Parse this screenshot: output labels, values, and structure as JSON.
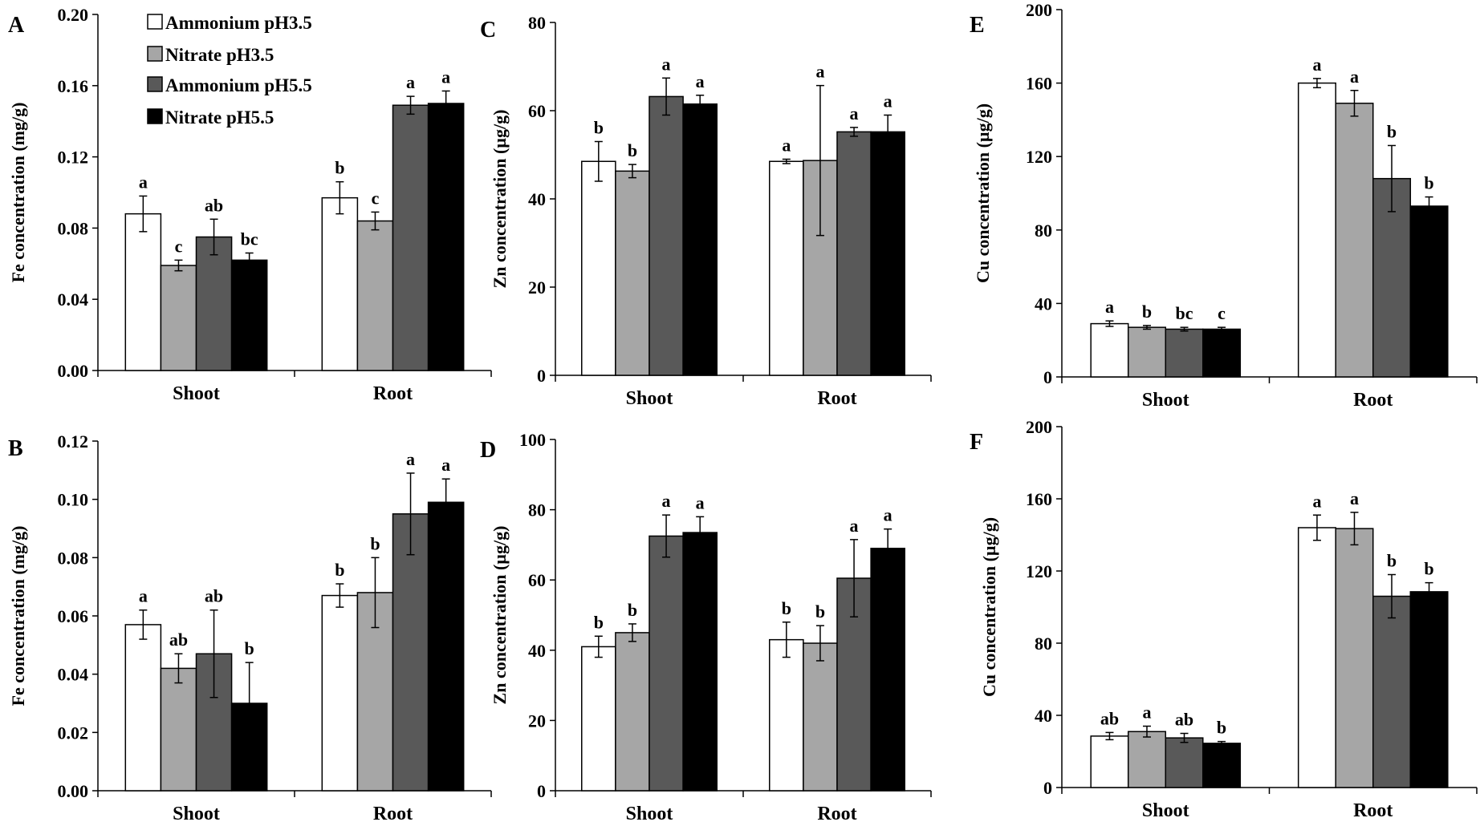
{
  "chart_data": [
    {
      "id": "A",
      "type": "bar",
      "panel_label": "A",
      "ylabel": "Fe concentration (mg/g)",
      "ylim": [
        0,
        0.2
      ],
      "yticks": [
        "0.00",
        "0.04",
        "0.08",
        "0.12",
        "0.16",
        "0.20"
      ],
      "categories": [
        "Shoot",
        "Root"
      ],
      "series": [
        {
          "name": "Ammonium pH3.5",
          "values": [
            0.088,
            0.097
          ],
          "errors": [
            0.01,
            0.009
          ],
          "letters": [
            "a",
            "b"
          ]
        },
        {
          "name": "Nitrate pH3.5",
          "values": [
            0.059,
            0.084
          ],
          "errors": [
            0.003,
            0.005
          ],
          "letters": [
            "c",
            "c"
          ]
        },
        {
          "name": "Ammonium pH5.5",
          "values": [
            0.075,
            0.149
          ],
          "errors": [
            0.01,
            0.005
          ],
          "letters": [
            "ab",
            "a"
          ]
        },
        {
          "name": "Nitrate pH5.5",
          "values": [
            0.062,
            0.15
          ],
          "errors": [
            0.004,
            0.007
          ],
          "letters": [
            "bc",
            "a"
          ]
        }
      ]
    },
    {
      "id": "C",
      "type": "bar",
      "panel_label": "C",
      "ylabel": "Zn concentration  (µg/g)",
      "ylim": [
        0,
        80
      ],
      "yticks": [
        "0",
        "20",
        "40",
        "60",
        "80"
      ],
      "categories": [
        "Shoot",
        "Root"
      ],
      "series": [
        {
          "name": "Ammonium pH3.5",
          "values": [
            48.5,
            48.5
          ],
          "errors": [
            4.5,
            0.5
          ],
          "letters": [
            "b",
            "a"
          ]
        },
        {
          "name": "Nitrate pH3.5",
          "values": [
            46.3,
            48.7
          ],
          "errors": [
            1.5,
            17
          ],
          "letters": [
            "b",
            "a"
          ]
        },
        {
          "name": "Ammonium pH5.5",
          "values": [
            63.2,
            55.2
          ],
          "errors": [
            4.2,
            1.0
          ],
          "letters": [
            "a",
            "a"
          ]
        },
        {
          "name": "Nitrate pH5.5",
          "values": [
            61.5,
            55.2
          ],
          "errors": [
            2.0,
            3.8
          ],
          "letters": [
            "a",
            "a"
          ]
        }
      ]
    },
    {
      "id": "E",
      "type": "bar",
      "panel_label": "E",
      "ylabel": "Cu concentration  (µg/g)",
      "ylim": [
        0,
        200
      ],
      "yticks": [
        "0",
        "40",
        "80",
        "120",
        "160",
        "200"
      ],
      "categories": [
        "Shoot",
        "Root"
      ],
      "series": [
        {
          "name": "Ammonium pH3.5",
          "values": [
            29,
            160
          ],
          "errors": [
            1.5,
            2.5
          ],
          "letters": [
            "a",
            "a"
          ]
        },
        {
          "name": "Nitrate pH3.5",
          "values": [
            27,
            149
          ],
          "errors": [
            1.0,
            7.0
          ],
          "letters": [
            "b",
            "a"
          ]
        },
        {
          "name": "Ammonium pH5.5",
          "values": [
            26,
            108
          ],
          "errors": [
            1.0,
            18
          ],
          "letters": [
            "bc",
            "b"
          ]
        },
        {
          "name": "Nitrate pH5.5",
          "values": [
            26,
            93
          ],
          "errors": [
            1.0,
            5.0
          ],
          "letters": [
            "c",
            "b"
          ]
        }
      ]
    },
    {
      "id": "B",
      "type": "bar",
      "panel_label": "B",
      "ylabel": "Fe concentration (mg/g)",
      "ylim": [
        0,
        0.12
      ],
      "yticks": [
        "0.00",
        "0.02",
        "0.04",
        "0.06",
        "0.08",
        "0.10",
        "0.12"
      ],
      "categories": [
        "Shoot",
        "Root"
      ],
      "series": [
        {
          "name": "Ammonium pH3.5",
          "values": [
            0.057,
            0.067
          ],
          "errors": [
            0.005,
            0.004
          ],
          "letters": [
            "a",
            "b"
          ]
        },
        {
          "name": "Nitrate pH3.5",
          "values": [
            0.042,
            0.068
          ],
          "errors": [
            0.005,
            0.012
          ],
          "letters": [
            "ab",
            "b"
          ]
        },
        {
          "name": "Ammonium pH5.5",
          "values": [
            0.047,
            0.095
          ],
          "errors": [
            0.015,
            0.014
          ],
          "letters": [
            "ab",
            "a"
          ]
        },
        {
          "name": "Nitrate pH5.5",
          "values": [
            0.03,
            0.099
          ],
          "errors": [
            0.014,
            0.008
          ],
          "letters": [
            "b",
            "a"
          ]
        }
      ]
    },
    {
      "id": "D",
      "type": "bar",
      "panel_label": "D",
      "ylabel": "Zn concentration  (µg/g)",
      "ylim": [
        0,
        100
      ],
      "yticks": [
        "0",
        "20",
        "40",
        "60",
        "80",
        "100"
      ],
      "categories": [
        "Shoot",
        "Root"
      ],
      "series": [
        {
          "name": "Ammonium pH3.5",
          "values": [
            41,
            43
          ],
          "errors": [
            3.0,
            5.0
          ],
          "letters": [
            "b",
            "b"
          ]
        },
        {
          "name": "Nitrate pH3.5",
          "values": [
            45,
            42
          ],
          "errors": [
            2.5,
            5.0
          ],
          "letters": [
            "b",
            "b"
          ]
        },
        {
          "name": "Ammonium pH5.5",
          "values": [
            72.5,
            60.5
          ],
          "errors": [
            6.0,
            11
          ],
          "letters": [
            "a",
            "a"
          ]
        },
        {
          "name": "Nitrate pH5.5",
          "values": [
            73.5,
            69
          ],
          "errors": [
            4.5,
            5.5
          ],
          "letters": [
            "a",
            "a"
          ]
        }
      ]
    },
    {
      "id": "F",
      "type": "bar",
      "panel_label": "F",
      "ylabel": "Cu concentration (µg/g)",
      "ylim": [
        0,
        200
      ],
      "yticks": [
        "0",
        "40",
        "80",
        "120",
        "160",
        "200"
      ],
      "categories": [
        "Shoot",
        "Root"
      ],
      "series": [
        {
          "name": "Ammonium pH3.5",
          "values": [
            28.5,
            144
          ],
          "errors": [
            2.0,
            7.0
          ],
          "letters": [
            "ab",
            "a"
          ]
        },
        {
          "name": "Nitrate pH3.5",
          "values": [
            31,
            143.5
          ],
          "errors": [
            3.0,
            9.0
          ],
          "letters": [
            "a",
            "a"
          ]
        },
        {
          "name": "Ammonium pH5.5",
          "values": [
            27.5,
            106
          ],
          "errors": [
            2.5,
            12
          ],
          "letters": [
            "ab",
            "b"
          ]
        },
        {
          "name": "Nitrate pH5.5",
          "values": [
            24.5,
            108.5
          ],
          "errors": [
            1.0,
            5.0
          ],
          "letters": [
            "b",
            "b"
          ]
        }
      ]
    }
  ],
  "legend": {
    "entries": [
      "Ammonium pH3.5",
      "Nitrate pH3.5",
      "Ammonium pH5.5",
      "Nitrate pH5.5"
    ]
  },
  "colors": {
    "Ammonium pH3.5": "#ffffff",
    "Nitrate pH3.5": "#a6a6a6",
    "Ammonium pH5.5": "#595959",
    "Nitrate pH5.5": "#000000"
  }
}
